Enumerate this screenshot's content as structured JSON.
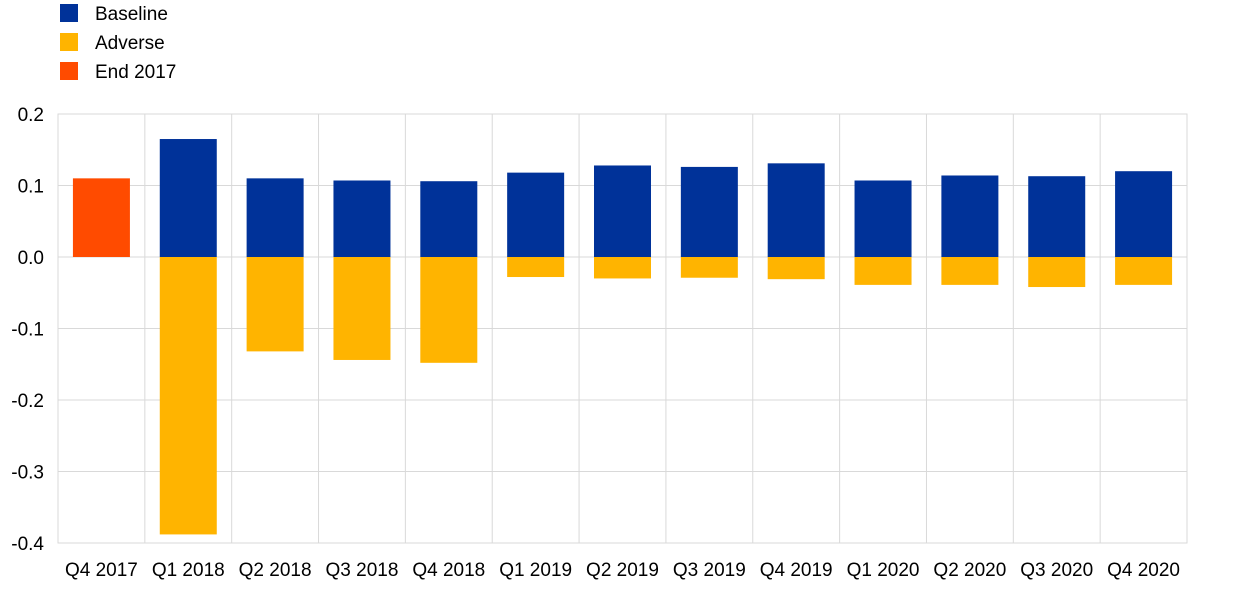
{
  "chart_data": {
    "type": "bar",
    "categories": [
      "Q4 2017",
      "Q1 2018",
      "Q2 2018",
      "Q3 2018",
      "Q4 2018",
      "Q1 2019",
      "Q2 2019",
      "Q3 2019",
      "Q4 2019",
      "Q1 2020",
      "Q2 2020",
      "Q3 2020",
      "Q4 2020"
    ],
    "series": [
      {
        "name": "Baseline",
        "color": "#003299",
        "values": [
          null,
          0.165,
          0.11,
          0.107,
          0.106,
          0.118,
          0.128,
          0.126,
          0.131,
          0.107,
          0.114,
          0.113,
          0.12
        ]
      },
      {
        "name": "Adverse",
        "color": "#FFB400",
        "values": [
          null,
          -0.388,
          -0.132,
          -0.144,
          -0.148,
          -0.028,
          -0.03,
          -0.029,
          -0.031,
          -0.039,
          -0.039,
          -0.042,
          -0.039
        ]
      },
      {
        "name": "End 2017",
        "color": "#FF4B00",
        "values": [
          0.11,
          null,
          null,
          null,
          null,
          null,
          null,
          null,
          null,
          null,
          null,
          null,
          null
        ]
      }
    ],
    "yticks": [
      "0.2",
      "0.1",
      "0.0",
      "-0.1",
      "-0.2",
      "-0.3",
      "-0.4"
    ],
    "ylim": [
      -0.4,
      0.2
    ],
    "grid": true,
    "legend_position": "top-left",
    "title": "",
    "xlabel": "",
    "ylabel": ""
  }
}
